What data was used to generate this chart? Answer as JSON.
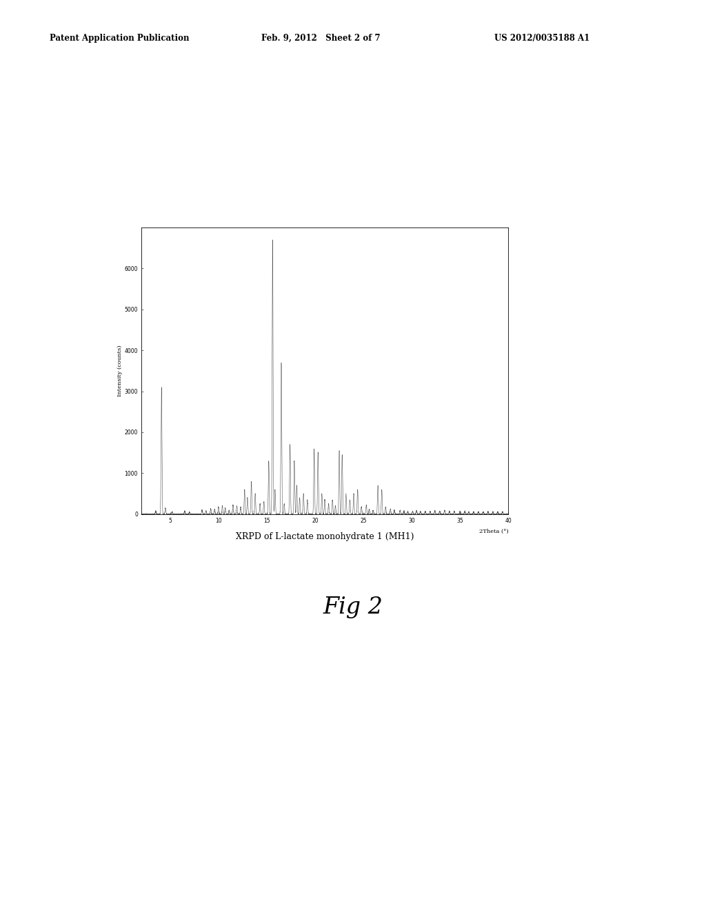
{
  "title": "XRPD of L-lactate monohydrate 1 (MH1)",
  "fig_label": "Fig 2",
  "header_left": "Patent Application Publication",
  "header_center": "Feb. 9, 2012   Sheet 2 of 7",
  "header_right": "US 2012/0035188 A1",
  "xlabel": "2Theta (°)",
  "ylabel": "Intensity (counts)",
  "xlim": [
    2,
    40
  ],
  "ylim": [
    0,
    7000
  ],
  "yticks": [
    0,
    1000,
    2000,
    3000,
    4000,
    5000,
    6000
  ],
  "xticks": [
    5,
    10,
    15,
    20,
    25,
    30,
    35,
    40
  ],
  "background_color": "#ffffff",
  "line_color": "#555555",
  "peaks": [
    [
      3.5,
      80
    ],
    [
      4.1,
      3100
    ],
    [
      4.5,
      150
    ],
    [
      5.2,
      60
    ],
    [
      6.5,
      80
    ],
    [
      7.0,
      50
    ],
    [
      8.3,
      100
    ],
    [
      8.7,
      80
    ],
    [
      9.2,
      130
    ],
    [
      9.6,
      120
    ],
    [
      10.0,
      180
    ],
    [
      10.4,
      200
    ],
    [
      10.7,
      150
    ],
    [
      11.1,
      90
    ],
    [
      11.5,
      220
    ],
    [
      11.9,
      200
    ],
    [
      12.3,
      180
    ],
    [
      12.7,
      600
    ],
    [
      13.0,
      400
    ],
    [
      13.4,
      800
    ],
    [
      13.8,
      500
    ],
    [
      14.3,
      250
    ],
    [
      14.7,
      300
    ],
    [
      15.2,
      1300
    ],
    [
      15.6,
      6700
    ],
    [
      15.85,
      600
    ],
    [
      16.5,
      3700
    ],
    [
      16.8,
      250
    ],
    [
      17.4,
      1700
    ],
    [
      17.85,
      1300
    ],
    [
      18.1,
      700
    ],
    [
      18.4,
      400
    ],
    [
      18.8,
      500
    ],
    [
      19.2,
      350
    ],
    [
      19.9,
      1600
    ],
    [
      20.3,
      1500
    ],
    [
      20.7,
      500
    ],
    [
      21.0,
      350
    ],
    [
      21.4,
      250
    ],
    [
      21.8,
      350
    ],
    [
      22.1,
      200
    ],
    [
      22.5,
      1550
    ],
    [
      22.8,
      1450
    ],
    [
      23.2,
      500
    ],
    [
      23.6,
      350
    ],
    [
      24.0,
      500
    ],
    [
      24.4,
      600
    ],
    [
      24.8,
      180
    ],
    [
      25.3,
      220
    ],
    [
      25.6,
      120
    ],
    [
      26.0,
      90
    ],
    [
      26.5,
      700
    ],
    [
      26.9,
      600
    ],
    [
      27.3,
      180
    ],
    [
      27.8,
      120
    ],
    [
      28.2,
      100
    ],
    [
      28.8,
      90
    ],
    [
      29.2,
      80
    ],
    [
      29.6,
      70
    ],
    [
      30.1,
      70
    ],
    [
      30.5,
      90
    ],
    [
      30.9,
      70
    ],
    [
      31.4,
      70
    ],
    [
      31.9,
      70
    ],
    [
      32.4,
      90
    ],
    [
      32.9,
      70
    ],
    [
      33.4,
      90
    ],
    [
      33.9,
      70
    ],
    [
      34.4,
      70
    ],
    [
      35.0,
      70
    ],
    [
      35.5,
      70
    ],
    [
      35.9,
      60
    ],
    [
      36.4,
      60
    ],
    [
      36.9,
      60
    ],
    [
      37.4,
      60
    ],
    [
      37.9,
      60
    ],
    [
      38.4,
      60
    ],
    [
      38.9,
      60
    ],
    [
      39.4,
      60
    ]
  ]
}
